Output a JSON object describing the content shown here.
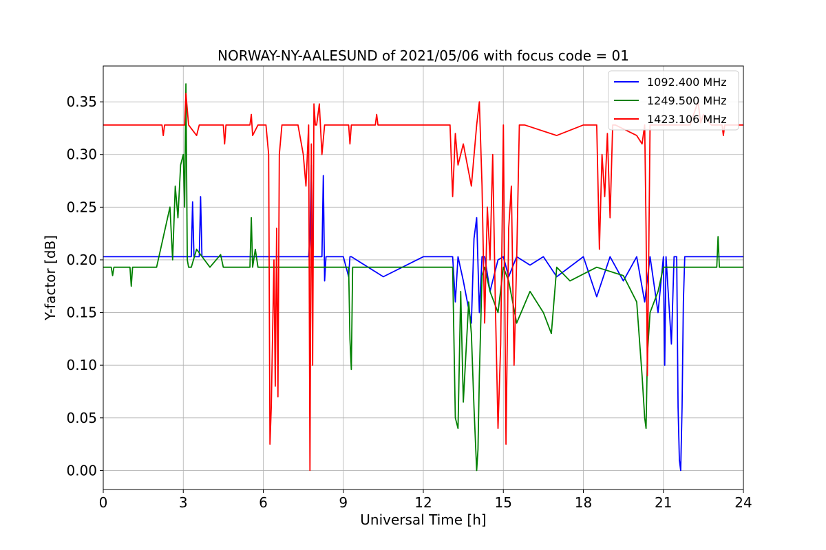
{
  "chart_data": {
    "type": "line",
    "title": "NORWAY-NY-AALESUND of 2021/05/06 with focus code = 01",
    "xlabel": "Universal Time [h]",
    "ylabel": "Y-factor [dB]",
    "xlim": [
      0,
      24
    ],
    "ylim": [
      -0.018,
      0.384
    ],
    "xticks": [
      0,
      3,
      6,
      9,
      12,
      15,
      18,
      21,
      24
    ],
    "xtick_labels": [
      "0",
      "3",
      "6",
      "9",
      "12",
      "15",
      "18",
      "21",
      "24"
    ],
    "yticks": [
      0.0,
      0.05,
      0.1,
      0.15,
      0.2,
      0.25,
      0.3,
      0.35
    ],
    "ytick_labels": [
      "0.00",
      "0.05",
      "0.10",
      "0.15",
      "0.20",
      "0.25",
      "0.30",
      "0.35"
    ],
    "grid": true,
    "legend_position": "top-right",
    "series": [
      {
        "name": "1092.400 MHz",
        "color": "#0000ff",
        "baseline": 0.203,
        "x": [
          0,
          3.3,
          3.35,
          3.4,
          3.6,
          3.65,
          3.7,
          3.8,
          7.7,
          7.75,
          7.8,
          7.85,
          7.9,
          8.0,
          8.2,
          8.25,
          8.3,
          8.35,
          9.0,
          9.2,
          9.25,
          9.3,
          10.5,
          12.0,
          13.1,
          13.2,
          13.3,
          13.5,
          13.8,
          13.9,
          14.0,
          14.1,
          14.2,
          14.3,
          14.5,
          14.8,
          15.0,
          15.2,
          15.5,
          16.0,
          16.5,
          17.0,
          18.0,
          18.5,
          19.0,
          19.5,
          20.0,
          20.3,
          20.5,
          20.8,
          21.0,
          21.05,
          21.1,
          21.3,
          21.4,
          21.5,
          21.55,
          21.6,
          21.65,
          21.7,
          21.75,
          21.8,
          21.9,
          22.0,
          22.5,
          23.0,
          24.0
        ],
        "y": [
          0.203,
          0.203,
          0.255,
          0.203,
          0.203,
          0.26,
          0.203,
          0.203,
          0.203,
          0.222,
          0.29,
          0.203,
          0.203,
          0.203,
          0.203,
          0.28,
          0.18,
          0.203,
          0.203,
          0.184,
          0.203,
          0.203,
          0.184,
          0.203,
          0.203,
          0.16,
          0.203,
          0.18,
          0.14,
          0.22,
          0.24,
          0.15,
          0.203,
          0.203,
          0.17,
          0.2,
          0.203,
          0.184,
          0.203,
          0.195,
          0.203,
          0.184,
          0.203,
          0.165,
          0.203,
          0.18,
          0.203,
          0.16,
          0.203,
          0.15,
          0.203,
          0.1,
          0.203,
          0.12,
          0.203,
          0.203,
          0.06,
          0.01,
          0.0,
          0.06,
          0.16,
          0.203,
          0.203,
          0.203,
          0.203,
          0.203,
          0.203
        ]
      },
      {
        "name": "1249.500 MHz",
        "color": "#008000",
        "baseline": 0.193,
        "x": [
          0,
          0.3,
          0.35,
          0.4,
          1.0,
          1.05,
          1.1,
          2.0,
          2.5,
          2.6,
          2.7,
          2.8,
          2.9,
          3.0,
          3.05,
          3.1,
          3.15,
          3.2,
          3.3,
          3.5,
          4.0,
          4.4,
          4.5,
          5.5,
          5.55,
          5.6,
          5.7,
          5.8,
          9.0,
          9.2,
          9.25,
          9.3,
          9.35,
          12.0,
          13.1,
          13.2,
          13.3,
          13.4,
          13.5,
          13.7,
          13.8,
          13.9,
          14.0,
          14.05,
          14.1,
          14.2,
          14.3,
          14.5,
          14.8,
          15.0,
          15.2,
          15.5,
          16.0,
          16.5,
          16.8,
          17.0,
          17.5,
          18.5,
          19.5,
          20.0,
          20.2,
          20.3,
          20.35,
          20.4,
          20.5,
          20.8,
          21.0,
          21.5,
          21.8,
          23.0,
          23.05,
          23.1,
          24.0
        ],
        "y": [
          0.193,
          0.193,
          0.185,
          0.193,
          0.193,
          0.175,
          0.193,
          0.193,
          0.25,
          0.2,
          0.27,
          0.24,
          0.29,
          0.3,
          0.25,
          0.367,
          0.2,
          0.193,
          0.193,
          0.21,
          0.193,
          0.205,
          0.193,
          0.193,
          0.24,
          0.193,
          0.21,
          0.193,
          0.193,
          0.193,
          0.125,
          0.096,
          0.193,
          0.193,
          0.193,
          0.05,
          0.04,
          0.17,
          0.065,
          0.16,
          0.13,
          0.06,
          0.0,
          0.02,
          0.09,
          0.185,
          0.193,
          0.17,
          0.15,
          0.193,
          0.18,
          0.14,
          0.17,
          0.15,
          0.13,
          0.193,
          0.18,
          0.193,
          0.185,
          0.16,
          0.09,
          0.05,
          0.04,
          0.11,
          0.15,
          0.17,
          0.193,
          0.193,
          0.193,
          0.193,
          0.222,
          0.193,
          0.193
        ]
      },
      {
        "name": "1423.106 MHz",
        "color": "#ff0000",
        "baseline": 0.328,
        "x": [
          0,
          2.2,
          2.25,
          2.3,
          3.0,
          3.05,
          3.1,
          3.2,
          3.5,
          3.6,
          4.5,
          4.55,
          4.6,
          5.3,
          5.5,
          5.55,
          5.6,
          5.8,
          6.1,
          6.2,
          6.25,
          6.3,
          6.4,
          6.45,
          6.5,
          6.55,
          6.6,
          6.7,
          6.8,
          7.3,
          7.5,
          7.6,
          7.7,
          7.75,
          7.8,
          7.85,
          7.9,
          7.95,
          8.0,
          8.1,
          8.2,
          8.3,
          9.2,
          9.25,
          9.3,
          10.2,
          10.25,
          10.3,
          13.0,
          13.1,
          13.2,
          13.3,
          13.5,
          13.8,
          14.0,
          14.1,
          14.2,
          14.3,
          14.4,
          14.5,
          14.6,
          14.7,
          14.8,
          14.9,
          15.0,
          15.1,
          15.2,
          15.3,
          15.4,
          15.5,
          15.6,
          15.7,
          15.8,
          17.0,
          18.0,
          18.5,
          18.6,
          18.7,
          18.8,
          18.9,
          19.0,
          19.1,
          19.2,
          20.0,
          20.2,
          20.3,
          20.35,
          20.4,
          20.45,
          20.5,
          20.6,
          21.0,
          22.0,
          22.3,
          22.4,
          22.5,
          22.8,
          23.2,
          23.25,
          23.3,
          24.0
        ],
        "y": [
          0.328,
          0.328,
          0.318,
          0.328,
          0.328,
          0.328,
          0.358,
          0.328,
          0.318,
          0.328,
          0.328,
          0.31,
          0.328,
          0.328,
          0.328,
          0.338,
          0.318,
          0.328,
          0.328,
          0.3,
          0.025,
          0.06,
          0.2,
          0.08,
          0.23,
          0.07,
          0.3,
          0.328,
          0.328,
          0.328,
          0.3,
          0.27,
          0.328,
          0.0,
          0.31,
          0.1,
          0.348,
          0.328,
          0.328,
          0.348,
          0.3,
          0.328,
          0.328,
          0.31,
          0.328,
          0.328,
          0.338,
          0.328,
          0.328,
          0.26,
          0.32,
          0.29,
          0.31,
          0.27,
          0.328,
          0.35,
          0.27,
          0.14,
          0.25,
          0.2,
          0.3,
          0.16,
          0.04,
          0.12,
          0.328,
          0.025,
          0.23,
          0.27,
          0.1,
          0.2,
          0.328,
          0.328,
          0.328,
          0.318,
          0.328,
          0.328,
          0.21,
          0.3,
          0.26,
          0.32,
          0.24,
          0.328,
          0.328,
          0.318,
          0.31,
          0.328,
          0.23,
          0.09,
          0.2,
          0.328,
          0.328,
          0.328,
          0.328,
          0.35,
          0.33,
          0.338,
          0.328,
          0.328,
          0.318,
          0.328,
          0.328
        ]
      }
    ]
  }
}
